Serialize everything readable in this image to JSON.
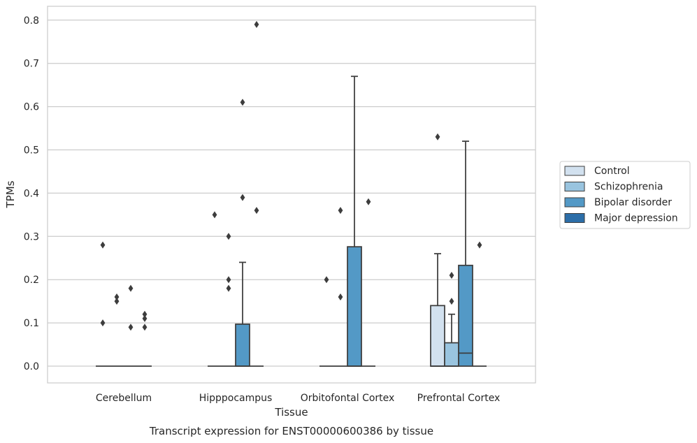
{
  "chart_data": {
    "type": "box",
    "title": "",
    "caption": "Transcript expression for ENST00000600386 by tissue",
    "xlabel": "Tissue",
    "ylabel": "TPMs",
    "ylim": [
      -0.04,
      0.83
    ],
    "yticks": [
      "0.0",
      "0.1",
      "0.2",
      "0.3",
      "0.4",
      "0.5",
      "0.6",
      "0.7",
      "0.8"
    ],
    "grid": true,
    "legend_position": "right",
    "categories": [
      "Cerebellum",
      "Hipppocampus",
      "Orbitofontal Cortex",
      "Prefrontal Cortex"
    ],
    "series": [
      {
        "name": "Control",
        "color": "#d2e1ef",
        "boxes": [
          {
            "q1": 0,
            "median": 0,
            "q3": 0,
            "whisker_low": 0,
            "whisker_high": 0,
            "outliers": [
              0.28,
              0.1
            ]
          },
          {
            "q1": 0,
            "median": 0,
            "q3": 0,
            "whisker_low": 0,
            "whisker_high": 0,
            "outliers": [
              0.35
            ]
          },
          {
            "q1": 0,
            "median": 0,
            "q3": 0,
            "whisker_low": 0,
            "whisker_high": 0,
            "outliers": [
              0.2
            ]
          },
          {
            "q1": 0,
            "median": 0,
            "q3": 0.14,
            "whisker_low": 0,
            "whisker_high": 0.26,
            "outliers": [
              0.53
            ]
          }
        ]
      },
      {
        "name": "Schizophrenia",
        "color": "#99c4df",
        "boxes": [
          {
            "q1": 0,
            "median": 0,
            "q3": 0,
            "whisker_low": 0,
            "whisker_high": 0,
            "outliers": [
              0.16,
              0.15
            ]
          },
          {
            "q1": 0,
            "median": 0,
            "q3": 0,
            "whisker_low": 0,
            "whisker_high": 0,
            "outliers": [
              0.3,
              0.2,
              0.18
            ]
          },
          {
            "q1": 0,
            "median": 0,
            "q3": 0,
            "whisker_low": 0,
            "whisker_high": 0,
            "outliers": [
              0.36,
              0.16
            ]
          },
          {
            "q1": 0,
            "median": 0,
            "q3": 0.054,
            "whisker_low": 0,
            "whisker_high": 0.12,
            "outliers": [
              0.21,
              0.15
            ]
          }
        ]
      },
      {
        "name": "Bipolar disorder",
        "color": "#5399c6",
        "boxes": [
          {
            "q1": 0,
            "median": 0,
            "q3": 0,
            "whisker_low": 0,
            "whisker_high": 0,
            "outliers": [
              0.18,
              0.09
            ]
          },
          {
            "q1": 0,
            "median": 0,
            "q3": 0.097,
            "whisker_low": 0,
            "whisker_high": 0.24,
            "outliers": [
              0.61,
              0.39
            ]
          },
          {
            "q1": 0,
            "median": 0,
            "q3": 0.276,
            "whisker_low": 0,
            "whisker_high": 0.67,
            "outliers": []
          },
          {
            "q1": 0,
            "median": 0.03,
            "q3": 0.233,
            "whisker_low": 0,
            "whisker_high": 0.52,
            "outliers": []
          }
        ]
      },
      {
        "name": "Major depression",
        "color": "#2c6ea8",
        "boxes": [
          {
            "q1": 0,
            "median": 0,
            "q3": 0,
            "whisker_low": 0,
            "whisker_high": 0,
            "outliers": [
              0.12,
              0.11,
              0.09
            ]
          },
          {
            "q1": 0,
            "median": 0,
            "q3": 0,
            "whisker_low": 0,
            "whisker_high": 0,
            "outliers": [
              0.79,
              0.36
            ]
          },
          {
            "q1": 0,
            "median": 0,
            "q3": 0,
            "whisker_low": 0,
            "whisker_high": 0,
            "outliers": [
              0.38
            ]
          },
          {
            "q1": 0,
            "median": 0,
            "q3": 0,
            "whisker_low": 0,
            "whisker_high": 0,
            "outliers": [
              0.28
            ]
          }
        ]
      }
    ]
  }
}
